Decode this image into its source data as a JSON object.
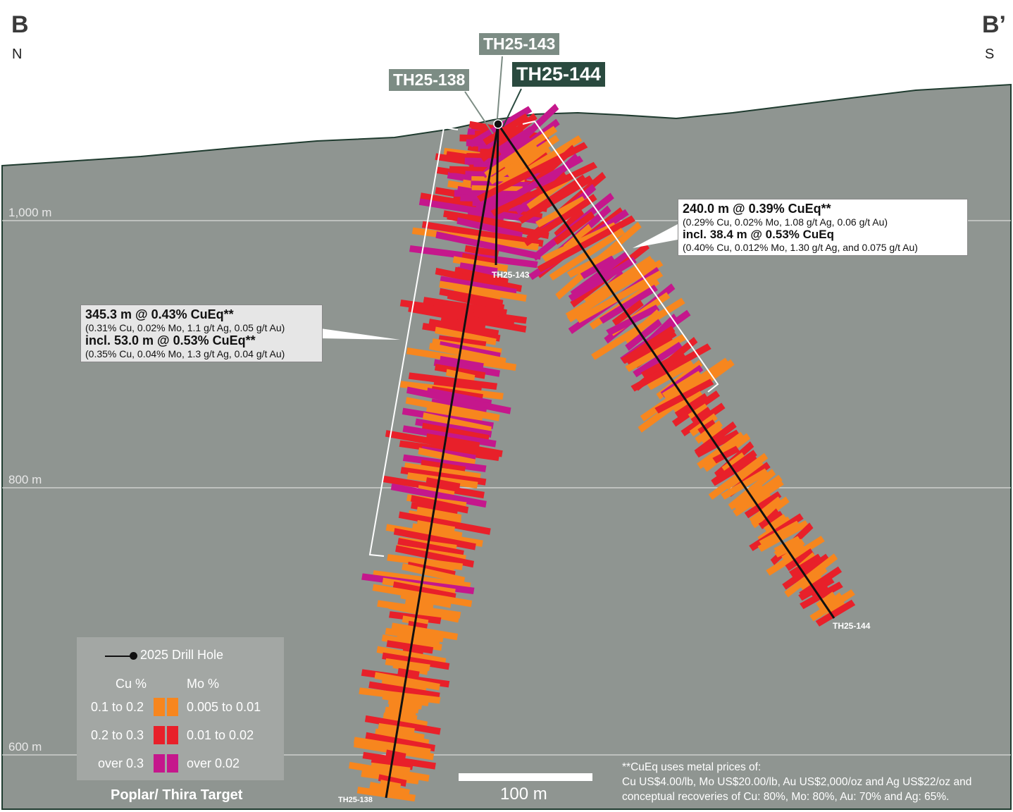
{
  "corners": {
    "left_label": "B",
    "left_dir": "N",
    "right_label": "B’",
    "right_dir": "S"
  },
  "elevations": [
    "1,000 m",
    "800 m",
    "600 m"
  ],
  "holes": {
    "th138": "TH25-138",
    "th143": "TH25-143",
    "th144": "TH25-144"
  },
  "callout_144": {
    "line1": "240.0 m @ 0.39% CuEq**",
    "line2": "(0.29% Cu, 0.02% Mo, 1.08 g/t Ag, 0.06 g/t Au)",
    "line3": "incl. 38.4 m @ 0.53% CuEq",
    "line4": "(0.40% Cu, 0.012% Mo, 1.30 g/t Ag, and 0.075 g/t Au)"
  },
  "callout_138": {
    "line1": "345.3 m @ 0.43% CuEq**",
    "line2": "(0.31% Cu, 0.02% Mo, 1.1 g/t Ag, 0.05 g/t Au)",
    "line3": "incl. 53.0 m @ 0.53% CuEq**",
    "line4": "(0.35% Cu, 0.04% Mo, 1.3 g/t Ag, 0.04 g/t Au)"
  },
  "legend": {
    "drill_hole": "2025 Drill Hole",
    "cu_header": "Cu %",
    "mo_header": "Mo %",
    "rows": [
      {
        "cu": "0.1 to 0.2",
        "mo": "0.005 to 0.01"
      },
      {
        "cu": "0.2 to 0.3",
        "mo": "0.01 to 0.02"
      },
      {
        "cu": "over 0.3",
        "mo": "over 0.02"
      }
    ],
    "target": "Poplar/ Thira Target"
  },
  "scale_label": "100 m",
  "note": {
    "line1": "**CuEq uses metal prices of:",
    "line2": "Cu US$4.00/lb, Mo US$20.00/lb, Au US$2,000/oz and Ag US$22/oz and",
    "line3": "conceptual recoveries of Cu: 80%, Mo: 80%, Au: 70% and Ag: 65%."
  },
  "colors": {
    "orange": "#f7861e",
    "red": "#e8202a",
    "magenta": "#c5178c",
    "ground": "#8f9591",
    "tag_light": "#7c8c84",
    "tag_dark": "#2a4a3f"
  }
}
